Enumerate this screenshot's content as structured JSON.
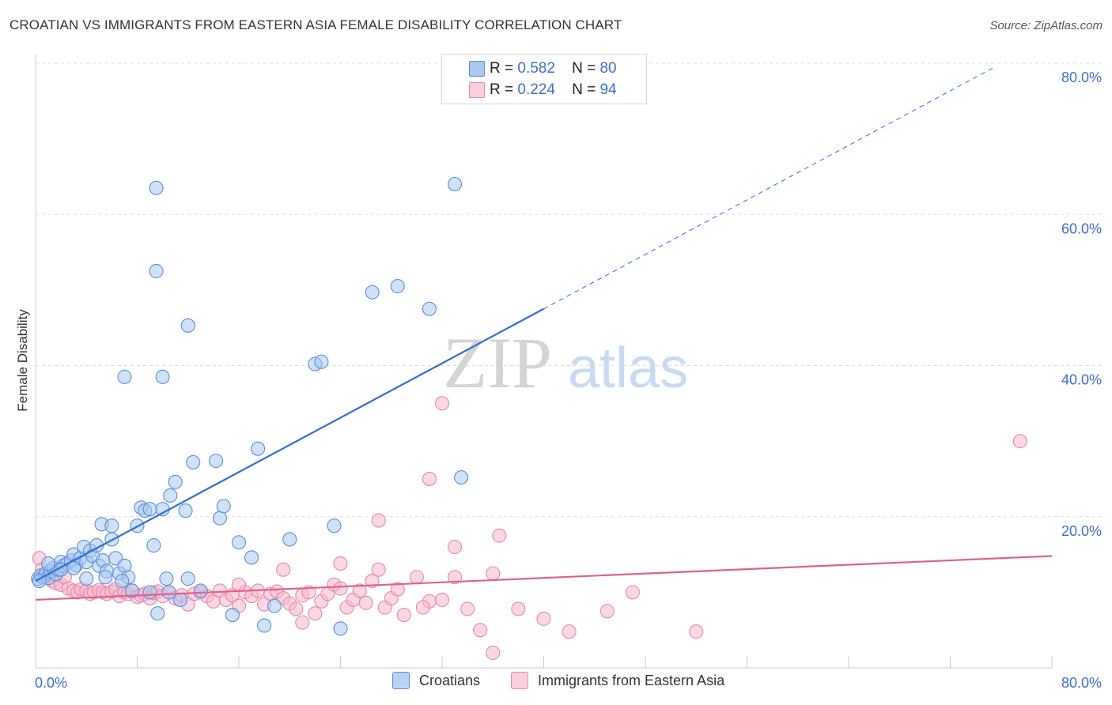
{
  "title": "CROATIAN VS IMMIGRANTS FROM EASTERN ASIA FEMALE DISABILITY CORRELATION CHART",
  "source": "Source: ZipAtlas.com",
  "watermark": {
    "zip": "ZIP",
    "atlas": "atlas"
  },
  "legend": {
    "series1": {
      "r_label": "R =",
      "r_value": "0.582",
      "n_label": "N =",
      "n_value": "80"
    },
    "series2": {
      "r_label": "R =",
      "r_value": "0.224",
      "n_label": "N =",
      "n_value": "94"
    }
  },
  "bottom_legend": {
    "series1": "Croatians",
    "series2": "Immigrants from Eastern Asia"
  },
  "colors": {
    "blue_fill": "#a9c8f2",
    "blue_stroke": "#5b8fd8",
    "blue_line": "#2e6fd0",
    "pink_fill": "#f5b8cc",
    "pink_stroke": "#e688a8",
    "pink_line": "#e0608c",
    "axis_text": "#3d6fd0",
    "grid": "#dddddd"
  },
  "chart_data": {
    "type": "scatter",
    "title": "CROATIAN VS IMMIGRANTS FROM EASTERN ASIA FEMALE DISABILITY CORRELATION CHART",
    "xlabel": "",
    "ylabel": "Female Disability",
    "xlim": [
      0,
      80
    ],
    "ylim": [
      0,
      80
    ],
    "x_tick_labels": [
      "0.0%",
      "80.0%"
    ],
    "y_tick_labels": [
      "20.0%",
      "40.0%",
      "60.0%",
      "80.0%"
    ],
    "y_ticks": [
      20,
      40,
      60,
      80
    ],
    "series": [
      {
        "name": "Croatians",
        "r": 0.582,
        "n": 80,
        "trend": {
          "x0": 0,
          "y0": 11.5,
          "x1": 40,
          "y1": 47.5,
          "dash_x1": 75.5,
          "dash_y1": 79.5
        },
        "points": [
          [
            0.2,
            11.8
          ],
          [
            0.4,
            12.2
          ],
          [
            0.6,
            12.0
          ],
          [
            0.8,
            12.5
          ],
          [
            1.0,
            11.9
          ],
          [
            1.2,
            12.8
          ],
          [
            1.4,
            13.2
          ],
          [
            1.6,
            12.4
          ],
          [
            1.8,
            13.0
          ],
          [
            2.0,
            14.0
          ],
          [
            2.2,
            13.5
          ],
          [
            2.5,
            13.8
          ],
          [
            2.8,
            14.2
          ],
          [
            3.0,
            15.0
          ],
          [
            3.2,
            13.6
          ],
          [
            3.5,
            14.5
          ],
          [
            3.8,
            16.0
          ],
          [
            4.0,
            14.0
          ],
          [
            4.3,
            15.5
          ],
          [
            4.5,
            14.8
          ],
          [
            4.8,
            16.2
          ],
          [
            5.0,
            13.5
          ],
          [
            5.3,
            14.2
          ],
          [
            5.6,
            12.8
          ],
          [
            6.0,
            17.0
          ],
          [
            6.3,
            14.5
          ],
          [
            6.6,
            12.5
          ],
          [
            7.0,
            13.5
          ],
          [
            7.3,
            12.0
          ],
          [
            7.6,
            10.2
          ],
          [
            8.0,
            18.8
          ],
          [
            8.3,
            21.2
          ],
          [
            8.6,
            20.8
          ],
          [
            9.0,
            21.0
          ],
          [
            9.3,
            16.2
          ],
          [
            9.6,
            7.2
          ],
          [
            10.0,
            21.0
          ],
          [
            10.3,
            11.8
          ],
          [
            10.6,
            22.8
          ],
          [
            11.0,
            24.6
          ],
          [
            11.4,
            9.0
          ],
          [
            11.8,
            20.8
          ],
          [
            12.0,
            11.8
          ],
          [
            12.4,
            27.2
          ],
          [
            13.0,
            10.2
          ],
          [
            14.2,
            27.4
          ],
          [
            14.5,
            19.8
          ],
          [
            14.8,
            21.4
          ],
          [
            15.5,
            7.0
          ],
          [
            16.0,
            16.6
          ],
          [
            17.0,
            14.6
          ],
          [
            17.5,
            29.0
          ],
          [
            18.0,
            5.6
          ],
          [
            18.8,
            8.2
          ],
          [
            20.0,
            17.0
          ],
          [
            5.2,
            19.0
          ],
          [
            6.0,
            18.8
          ],
          [
            9.5,
            52.5
          ],
          [
            9.5,
            63.5
          ],
          [
            10.0,
            38.5
          ],
          [
            12.0,
            45.3
          ],
          [
            22.0,
            40.2
          ],
          [
            22.5,
            40.5
          ],
          [
            24.0,
            5.2
          ],
          [
            26.5,
            49.7
          ],
          [
            28.5,
            50.5
          ],
          [
            31.0,
            47.5
          ],
          [
            33.0,
            64.0
          ],
          [
            33.5,
            25.2
          ],
          [
            7.0,
            38.5
          ],
          [
            9.0,
            10.0
          ],
          [
            10.5,
            10.0
          ],
          [
            23.5,
            18.8
          ],
          [
            0.3,
            11.5
          ],
          [
            1.0,
            13.8
          ],
          [
            2.0,
            13.0
          ],
          [
            3.0,
            13.2
          ],
          [
            4.0,
            11.8
          ],
          [
            5.5,
            12.0
          ],
          [
            6.8,
            11.5
          ]
        ]
      },
      {
        "name": "Immigrants from Eastern Asia",
        "r": 0.224,
        "n": 94,
        "trend": {
          "x0": 0,
          "y0": 9.0,
          "x1": 80,
          "y1": 14.8
        },
        "points": [
          [
            0.3,
            14.5
          ],
          [
            0.5,
            13.0
          ],
          [
            0.8,
            12.0
          ],
          [
            1.0,
            12.5
          ],
          [
            1.3,
            11.5
          ],
          [
            1.6,
            11.2
          ],
          [
            2.0,
            11.0
          ],
          [
            2.3,
            12.0
          ],
          [
            2.6,
            10.5
          ],
          [
            3.0,
            10.2
          ],
          [
            3.3,
            10.0
          ],
          [
            3.6,
            10.4
          ],
          [
            4.0,
            10.2
          ],
          [
            4.3,
            9.8
          ],
          [
            4.6,
            10.0
          ],
          [
            5.0,
            10.3
          ],
          [
            5.3,
            10.0
          ],
          [
            5.6,
            9.8
          ],
          [
            6.0,
            10.1
          ],
          [
            6.3,
            10.4
          ],
          [
            6.6,
            9.5
          ],
          [
            7.0,
            10.0
          ],
          [
            7.3,
            9.8
          ],
          [
            7.6,
            10.2
          ],
          [
            8.0,
            9.4
          ],
          [
            8.3,
            9.6
          ],
          [
            8.6,
            9.8
          ],
          [
            9.0,
            9.2
          ],
          [
            9.3,
            9.9
          ],
          [
            9.6,
            10.1
          ],
          [
            10.0,
            9.5
          ],
          [
            10.5,
            10.0
          ],
          [
            11.0,
            9.2
          ],
          [
            11.5,
            9.6
          ],
          [
            12.0,
            8.4
          ],
          [
            12.5,
            9.8
          ],
          [
            13.0,
            10.0
          ],
          [
            13.5,
            9.5
          ],
          [
            14.0,
            8.8
          ],
          [
            14.5,
            10.2
          ],
          [
            15.0,
            9.0
          ],
          [
            15.5,
            9.6
          ],
          [
            16.0,
            8.2
          ],
          [
            16.5,
            10.0
          ],
          [
            17.0,
            9.5
          ],
          [
            17.5,
            10.2
          ],
          [
            18.0,
            8.4
          ],
          [
            18.5,
            9.8
          ],
          [
            19.0,
            10.1
          ],
          [
            19.5,
            9.2
          ],
          [
            20.0,
            8.5
          ],
          [
            20.5,
            7.8
          ],
          [
            21.0,
            9.6
          ],
          [
            21.5,
            10.0
          ],
          [
            22.0,
            7.2
          ],
          [
            22.5,
            8.8
          ],
          [
            23.0,
            9.8
          ],
          [
            23.5,
            11.0
          ],
          [
            24.0,
            10.5
          ],
          [
            24.5,
            8.0
          ],
          [
            25.0,
            9.0
          ],
          [
            25.5,
            10.2
          ],
          [
            26.0,
            8.6
          ],
          [
            26.5,
            11.5
          ],
          [
            27.0,
            13.0
          ],
          [
            27.5,
            8.0
          ],
          [
            28.0,
            9.2
          ],
          [
            28.5,
            10.4
          ],
          [
            29.0,
            7.0
          ],
          [
            30.0,
            12.0
          ],
          [
            31.0,
            8.8
          ],
          [
            32.0,
            9.0
          ],
          [
            33.0,
            12.0
          ],
          [
            34.0,
            7.8
          ],
          [
            35.0,
            5.0
          ],
          [
            36.0,
            12.5
          ],
          [
            38.0,
            7.8
          ],
          [
            40.0,
            6.5
          ],
          [
            42.0,
            4.8
          ],
          [
            45.0,
            7.5
          ],
          [
            47.0,
            10.0
          ],
          [
            52.0,
            4.8
          ],
          [
            30.5,
            8.0
          ],
          [
            31.0,
            25.0
          ],
          [
            32.0,
            35.0
          ],
          [
            27.0,
            19.5
          ],
          [
            33.0,
            16.0
          ],
          [
            36.5,
            17.5
          ],
          [
            77.5,
            30.0
          ],
          [
            36.0,
            2.0
          ],
          [
            16.0,
            11.0
          ],
          [
            19.5,
            13.0
          ],
          [
            21.0,
            6.0
          ],
          [
            24.0,
            13.8
          ]
        ]
      }
    ]
  }
}
